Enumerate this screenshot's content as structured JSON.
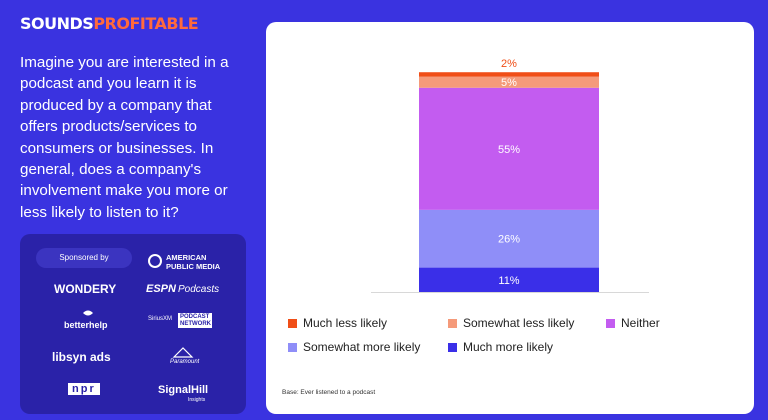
{
  "logo": {
    "part1": "SOUNDS",
    "part2": "PROFITABLE"
  },
  "question": "Imagine you are interested in a podcast and you learn it is produced by a company that offers products/services to consumers or businesses. In general, does a company's involvement make you more or less likely to listen to it?",
  "sponsors": {
    "label": "Sponsored by",
    "names": [
      "AMERICAN",
      "PUBLIC MEDIA",
      "WONDERY",
      "ESPN",
      "Podcasts",
      "betterhelp",
      "SiriusXM",
      "PODCAST",
      "NETWORK",
      "libsyn ads",
      "Paramount",
      "npr",
      "SignalHill",
      "Insights"
    ]
  },
  "colors": {
    "background": "#3a33e0",
    "much_less": "#f04e17",
    "somewhat_less": "#f59a7a",
    "neither": "#c35cf0",
    "somewhat_more": "#8f8ef8",
    "much_more": "#3a2fe8"
  },
  "chart_data": {
    "type": "bar",
    "stacked": true,
    "categories": [
      ""
    ],
    "series": [
      {
        "name": "Much more likely",
        "values": [
          11
        ],
        "label": "11%",
        "color": "#3a2fe8"
      },
      {
        "name": "Somewhat more likely",
        "values": [
          26
        ],
        "label": "26%",
        "color": "#8f8ef8"
      },
      {
        "name": "Neither",
        "values": [
          55
        ],
        "label": "55%",
        "color": "#c35cf0"
      },
      {
        "name": "Somewhat less likely",
        "values": [
          5
        ],
        "label": "5%",
        "color": "#f59a7a"
      },
      {
        "name": "Much less likely",
        "values": [
          2
        ],
        "label": "2%",
        "color": "#f04e17"
      }
    ],
    "ylim": [
      0,
      100
    ],
    "legend_position": "bottom",
    "grid": false
  },
  "legend": [
    {
      "label": "Much less likely",
      "color": "#f04e17"
    },
    {
      "label": "Somewhat less likely",
      "color": "#f59a7a"
    },
    {
      "label": "Neither",
      "color": "#c35cf0"
    },
    {
      "label": "Somewhat more likely",
      "color": "#8f8ef8"
    },
    {
      "label": "Much more likely",
      "color": "#3a2fe8"
    }
  ],
  "base_note": "Base: Ever listened to a podcast"
}
